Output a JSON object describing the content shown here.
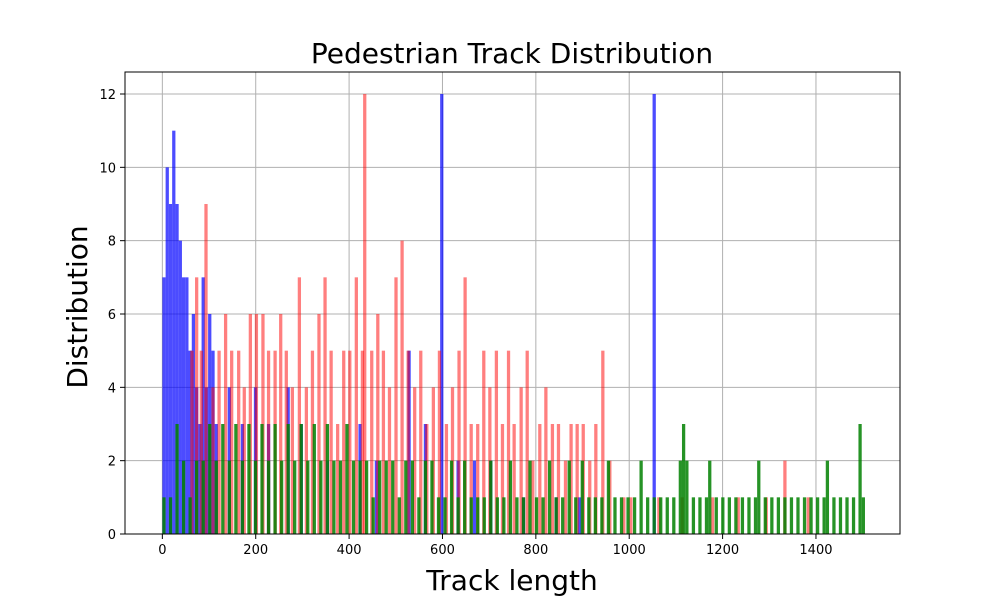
{
  "chart_data": {
    "type": "bar",
    "title": "Pedestrian Track Distribution",
    "xlabel": "Track length",
    "ylabel": "Distribution",
    "xlim": [
      -80,
      1580
    ],
    "ylim": [
      0,
      12.6
    ],
    "xticks": [
      0,
      200,
      400,
      600,
      800,
      1000,
      1200,
      1400
    ],
    "yticks": [
      0,
      2,
      4,
      6,
      8,
      10,
      12
    ],
    "grid": true,
    "legend": "none",
    "series": [
      {
        "color": "#0000ff",
        "opacity": 0.7,
        "bin_width": 7,
        "bins": [
          [
            0,
            7
          ],
          [
            7,
            10
          ],
          [
            14,
            9
          ],
          [
            21,
            11
          ],
          [
            28,
            9
          ],
          [
            35,
            8
          ],
          [
            42,
            7
          ],
          [
            49,
            7
          ],
          [
            56,
            5
          ],
          [
            63,
            6
          ],
          [
            70,
            4
          ],
          [
            77,
            3
          ],
          [
            84,
            7
          ],
          [
            91,
            4
          ],
          [
            98,
            6
          ],
          [
            105,
            5
          ],
          [
            112,
            3
          ],
          [
            140,
            4
          ],
          [
            168,
            3
          ],
          [
            196,
            4
          ],
          [
            224,
            3
          ],
          [
            266,
            4
          ],
          [
            294,
            3
          ],
          [
            350,
            2
          ],
          [
            420,
            3
          ],
          [
            455,
            2
          ],
          [
            525,
            5
          ],
          [
            560,
            3
          ],
          [
            595,
            12
          ],
          [
            630,
            2
          ],
          [
            665,
            2
          ],
          [
            700,
            2
          ],
          [
            770,
            1
          ],
          [
            840,
            1
          ],
          [
            890,
            1
          ],
          [
            1050,
            12
          ]
        ]
      },
      {
        "color": "#ff0000",
        "opacity": 0.5,
        "bin_width": 7,
        "bins": [
          [
            60,
            5
          ],
          [
            70,
            7
          ],
          [
            80,
            5
          ],
          [
            90,
            9
          ],
          [
            105,
            4
          ],
          [
            118,
            5
          ],
          [
            132,
            6
          ],
          [
            145,
            5
          ],
          [
            160,
            5
          ],
          [
            172,
            4
          ],
          [
            185,
            6
          ],
          [
            198,
            6
          ],
          [
            212,
            6
          ],
          [
            224,
            5
          ],
          [
            238,
            5
          ],
          [
            250,
            6
          ],
          [
            262,
            5
          ],
          [
            275,
            4
          ],
          [
            290,
            7
          ],
          [
            305,
            4
          ],
          [
            318,
            5
          ],
          [
            332,
            6
          ],
          [
            345,
            7
          ],
          [
            358,
            5
          ],
          [
            372,
            3
          ],
          [
            385,
            5
          ],
          [
            398,
            5
          ],
          [
            412,
            7
          ],
          [
            425,
            5
          ],
          [
            430,
            12
          ],
          [
            445,
            5
          ],
          [
            458,
            6
          ],
          [
            470,
            5
          ],
          [
            483,
            4
          ],
          [
            497,
            7
          ],
          [
            510,
            8
          ],
          [
            523,
            5
          ],
          [
            537,
            4
          ],
          [
            550,
            5
          ],
          [
            563,
            3
          ],
          [
            577,
            4
          ],
          [
            590,
            5
          ],
          [
            605,
            3
          ],
          [
            618,
            4
          ],
          [
            632,
            5
          ],
          [
            645,
            7
          ],
          [
            658,
            3
          ],
          [
            672,
            3
          ],
          [
            685,
            5
          ],
          [
            698,
            4
          ],
          [
            712,
            5
          ],
          [
            725,
            3
          ],
          [
            738,
            5
          ],
          [
            750,
            3
          ],
          [
            765,
            4
          ],
          [
            778,
            5
          ],
          [
            790,
            2
          ],
          [
            805,
            3
          ],
          [
            818,
            4
          ],
          [
            832,
            3
          ],
          [
            845,
            3
          ],
          [
            860,
            2
          ],
          [
            872,
            3
          ],
          [
            885,
            3
          ],
          [
            898,
            3
          ],
          [
            912,
            2
          ],
          [
            925,
            3
          ],
          [
            940,
            5
          ],
          [
            955,
            2
          ],
          [
            985,
            1
          ],
          [
            1000,
            1
          ],
          [
            1060,
            1
          ],
          [
            1110,
            1
          ],
          [
            1175,
            1
          ],
          [
            1230,
            1
          ],
          [
            1290,
            1
          ],
          [
            1330,
            2
          ],
          [
            1380,
            1
          ]
        ]
      },
      {
        "color": "#008000",
        "opacity": 0.85,
        "bin_width": 7,
        "bins": [
          [
            0,
            1
          ],
          [
            14,
            1
          ],
          [
            28,
            3
          ],
          [
            42,
            2
          ],
          [
            56,
            1
          ],
          [
            70,
            2
          ],
          [
            84,
            2
          ],
          [
            98,
            3
          ],
          [
            112,
            2
          ],
          [
            126,
            3
          ],
          [
            140,
            2
          ],
          [
            154,
            3
          ],
          [
            168,
            2
          ],
          [
            182,
            3
          ],
          [
            196,
            2
          ],
          [
            210,
            3
          ],
          [
            224,
            2
          ],
          [
            238,
            3
          ],
          [
            252,
            2
          ],
          [
            266,
            3
          ],
          [
            280,
            2
          ],
          [
            294,
            3
          ],
          [
            308,
            2
          ],
          [
            322,
            3
          ],
          [
            336,
            2
          ],
          [
            350,
            3
          ],
          [
            364,
            2
          ],
          [
            378,
            2
          ],
          [
            392,
            3
          ],
          [
            406,
            2
          ],
          [
            420,
            2
          ],
          [
            434,
            2
          ],
          [
            448,
            1
          ],
          [
            462,
            2
          ],
          [
            476,
            2
          ],
          [
            490,
            2
          ],
          [
            504,
            1
          ],
          [
            518,
            2
          ],
          [
            532,
            2
          ],
          [
            546,
            1
          ],
          [
            560,
            2
          ],
          [
            574,
            2
          ],
          [
            588,
            1
          ],
          [
            602,
            1
          ],
          [
            616,
            2
          ],
          [
            630,
            1
          ],
          [
            644,
            2
          ],
          [
            658,
            1
          ],
          [
            672,
            1
          ],
          [
            686,
            1
          ],
          [
            700,
            2
          ],
          [
            714,
            1
          ],
          [
            728,
            1
          ],
          [
            742,
            2
          ],
          [
            756,
            1
          ],
          [
            770,
            1
          ],
          [
            784,
            2
          ],
          [
            798,
            1
          ],
          [
            812,
            1
          ],
          [
            826,
            2
          ],
          [
            840,
            1
          ],
          [
            854,
            1
          ],
          [
            868,
            2
          ],
          [
            882,
            1
          ],
          [
            896,
            2
          ],
          [
            910,
            1
          ],
          [
            924,
            1
          ],
          [
            938,
            1
          ],
          [
            952,
            2
          ],
          [
            966,
            1
          ],
          [
            980,
            1
          ],
          [
            994,
            1
          ],
          [
            1008,
            1
          ],
          [
            1022,
            2
          ],
          [
            1036,
            1
          ],
          [
            1050,
            1
          ],
          [
            1064,
            1
          ],
          [
            1078,
            1
          ],
          [
            1092,
            1
          ],
          [
            1106,
            2
          ],
          [
            1113,
            3
          ],
          [
            1120,
            2
          ],
          [
            1134,
            1
          ],
          [
            1148,
            1
          ],
          [
            1162,
            1
          ],
          [
            1169,
            2
          ],
          [
            1183,
            1
          ],
          [
            1197,
            1
          ],
          [
            1211,
            1
          ],
          [
            1225,
            1
          ],
          [
            1239,
            1
          ],
          [
            1253,
            1
          ],
          [
            1267,
            1
          ],
          [
            1274,
            2
          ],
          [
            1288,
            1
          ],
          [
            1302,
            1
          ],
          [
            1316,
            1
          ],
          [
            1330,
            1
          ],
          [
            1344,
            1
          ],
          [
            1358,
            1
          ],
          [
            1372,
            1
          ],
          [
            1386,
            1
          ],
          [
            1400,
            1
          ],
          [
            1414,
            1
          ],
          [
            1421,
            2
          ],
          [
            1435,
            1
          ],
          [
            1449,
            1
          ],
          [
            1463,
            1
          ],
          [
            1477,
            1
          ],
          [
            1491,
            3
          ],
          [
            1498,
            1
          ]
        ]
      }
    ]
  }
}
